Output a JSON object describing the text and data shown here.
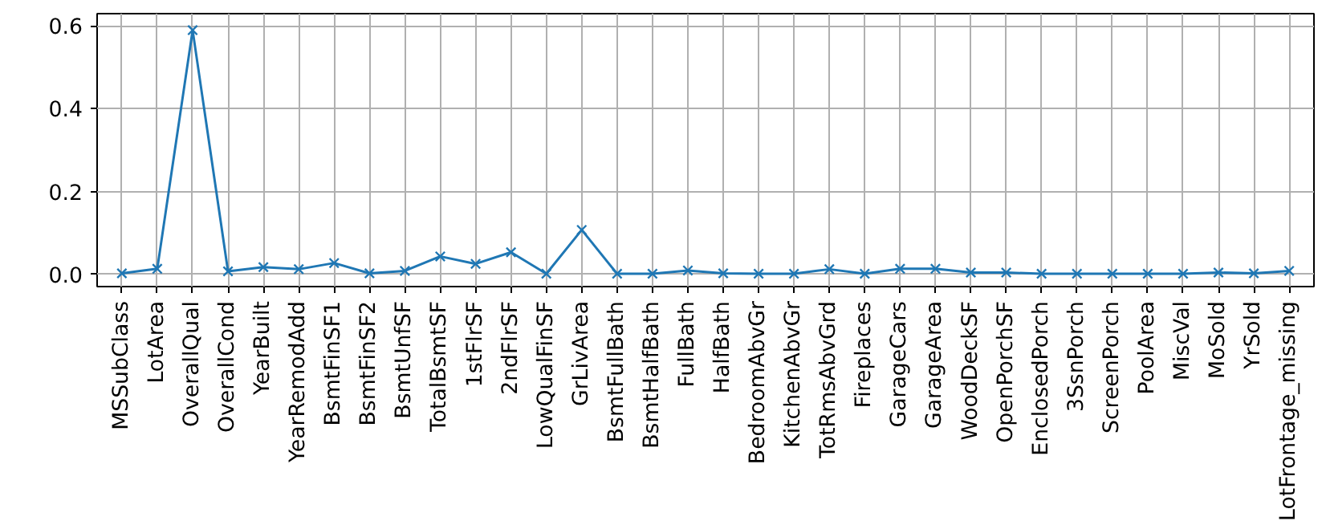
{
  "chart_data": {
    "type": "line",
    "categories": [
      "MSSubClass",
      "LotArea",
      "OverallQual",
      "OverallCond",
      "YearBuilt",
      "YearRemodAdd",
      "BsmtFinSF1",
      "BsmtFinSF2",
      "BsmtUnfSF",
      "TotalBsmtSF",
      "1stFlrSF",
      "2ndFlrSF",
      "LowQualFinSF",
      "GrLivArea",
      "BsmtFullBath",
      "BsmtHalfBath",
      "FullBath",
      "HalfBath",
      "BedroomAbvGr",
      "KitchenAbvGr",
      "TotRmsAbvGrd",
      "Fireplaces",
      "GarageCars",
      "GarageArea",
      "WoodDeckSF",
      "OpenPorchSF",
      "EnclosedPorch",
      "3SsnPorch",
      "ScreenPorch",
      "PoolArea",
      "MiscVal",
      "MoSold",
      "YrSold",
      "LotFrontage_missing"
    ],
    "series": [
      {
        "color": "#1f77b4",
        "values": [
          0.002,
          0.013,
          0.59,
          0.007,
          0.017,
          0.012,
          0.027,
          0.002,
          0.008,
          0.043,
          0.025,
          0.053,
          0.001,
          0.107,
          0.001,
          0.001,
          0.009,
          0.002,
          0.001,
          0.001,
          0.012,
          0.001,
          0.013,
          0.013,
          0.004,
          0.004,
          0.001,
          0.001,
          0.001,
          0.001,
          0.001,
          0.004,
          0.002,
          0.008
        ]
      }
    ],
    "ylim": [
      -0.03,
      0.63
    ],
    "yticks": [
      {
        "value": 0,
        "label": "0.0"
      },
      {
        "value": 0.2,
        "label": "0.2"
      },
      {
        "value": 0.4,
        "label": "0.4"
      },
      {
        "value": 0.6,
        "label": "0.6"
      }
    ],
    "grid": true,
    "marker": "cross",
    "line_style": "solid"
  }
}
